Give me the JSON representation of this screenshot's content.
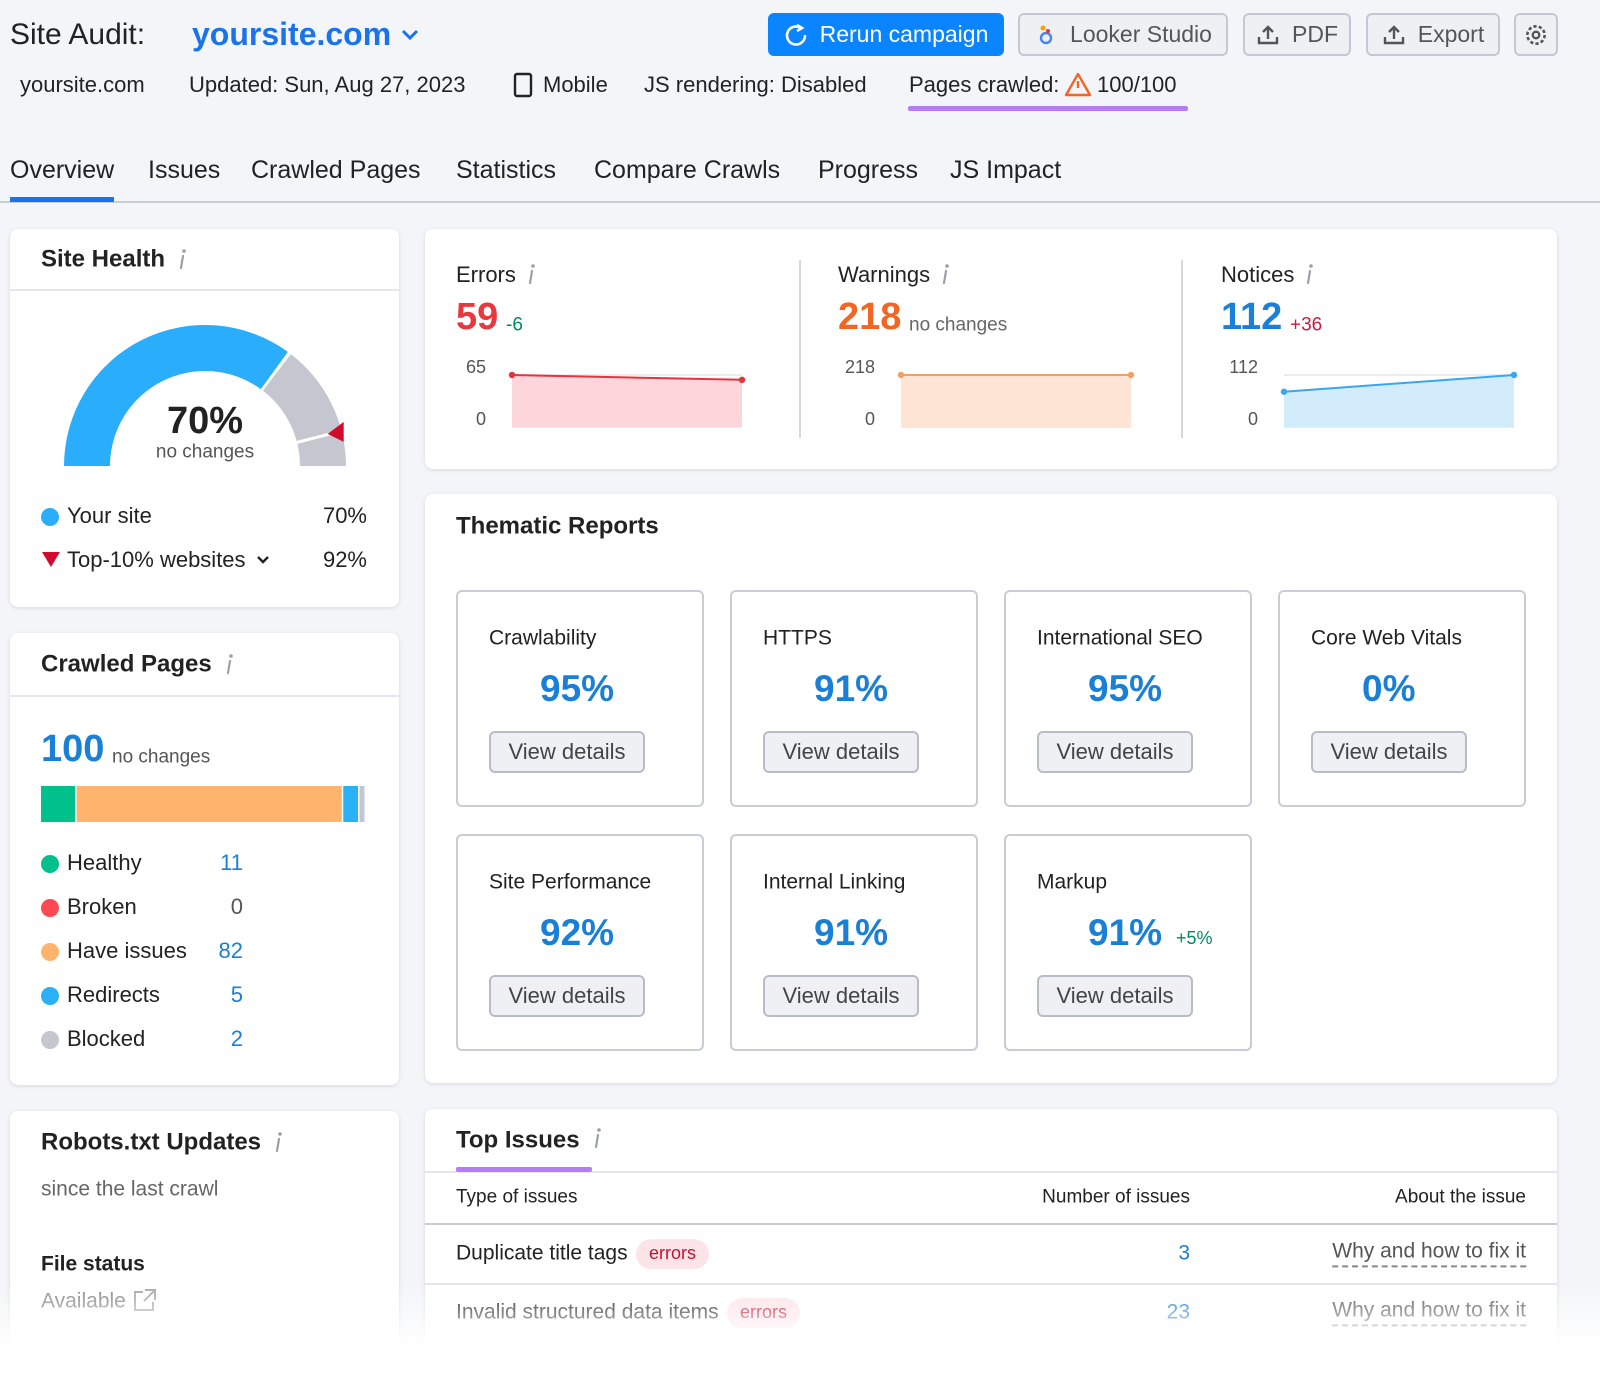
{
  "header": {
    "title": "Site Audit:",
    "domain": "yoursite.com",
    "buttons": [
      "Rerun campaign",
      "Looker Studio",
      "PDF",
      "Export"
    ],
    "site": "yoursite.com",
    "updated": "Updated: Sun, Aug 27, 2023",
    "device": "Mobile",
    "js_rendering": "JS rendering: Disabled",
    "pages_crawled_label": "Pages crawled:",
    "pages_crawled_value": "100/100"
  },
  "tabs": {
    "items": [
      "Overview",
      "Issues",
      "Crawled Pages",
      "Statistics",
      "Compare Crawls",
      "Progress",
      "JS Impact"
    ],
    "active": 0
  },
  "site_health": {
    "title": "Site Health",
    "change": "no changes",
    "legend": [
      {
        "name": "Your site",
        "value": 70,
        "value_label": "70%",
        "color": "#2aaefc"
      },
      {
        "name": "Top-10% websites",
        "value": 92,
        "value_label": "92%",
        "color": "#d10a2e"
      }
    ]
  },
  "summary": [
    {
      "name": "Errors",
      "value": 59,
      "change": "-6",
      "color": "#e8383f",
      "change_color": "#008a5a",
      "line_color": "#e5333f",
      "area_color": "#fdd6dc",
      "trend": [
        65,
        59
      ],
      "yticks": [
        0,
        65
      ]
    },
    {
      "name": "Warnings",
      "value": 218,
      "change": "no changes",
      "color": "#f26522",
      "change_color": "#666666",
      "line_color": "#f0a060",
      "area_color": "#fde4d4",
      "trend": [
        218,
        218
      ],
      "yticks": [
        0,
        218
      ]
    },
    {
      "name": "Notices",
      "value": 112,
      "change": "+36",
      "color": "#1a7fd6",
      "change_color": "#d1193c",
      "line_color": "#3aa5f0",
      "area_color": "#d3ecfb",
      "trend": [
        76,
        112
      ],
      "yticks": [
        0,
        112
      ]
    }
  ],
  "thematic": {
    "title": "Thematic Reports",
    "button": "View details",
    "reports": [
      {
        "name": "Crawlability",
        "value": 95,
        "value_label": "95%"
      },
      {
        "name": "HTTPS",
        "value": 91,
        "value_label": "91%"
      },
      {
        "name": "International SEO",
        "value": 95,
        "value_label": "95%"
      },
      {
        "name": "Core Web Vitals",
        "value": 0,
        "value_label": "0%"
      },
      {
        "name": "Site Performance",
        "value": 92,
        "value_label": "92%"
      },
      {
        "name": "Internal Linking",
        "value": 91,
        "value_label": "91%"
      },
      {
        "name": "Markup",
        "value": 91,
        "value_label": "91%",
        "change": "+5%"
      }
    ]
  },
  "crawled_pages": {
    "title": "Crawled Pages",
    "total": 100,
    "change": "no changes",
    "segments": [
      {
        "name": "Healthy",
        "value": 11,
        "color": "#00c08b"
      },
      {
        "name": "Broken",
        "value": 0,
        "color": "#ff4953"
      },
      {
        "name": "Have issues",
        "value": 82,
        "color": "#ffb46e"
      },
      {
        "name": "Redirects",
        "value": 5,
        "color": "#2bb0f5"
      },
      {
        "name": "Blocked",
        "value": 2,
        "color": "#c4c7cf"
      }
    ]
  },
  "robots": {
    "title": "Robots.txt Updates",
    "subtitle": "since the last crawl",
    "file_status_label": "File status",
    "file_status": "Available"
  },
  "top_issues": {
    "title": "Top Issues",
    "columns": [
      "Type of issues",
      "Number of issues",
      "About the issue"
    ],
    "rows": [
      {
        "issue": "Duplicate title tags",
        "tag": "errors",
        "count": 3,
        "link": "Why and how to fix it"
      },
      {
        "issue": "Invalid structured data items",
        "tag": "errors",
        "count": 23,
        "link": "Why and how to fix it"
      }
    ]
  }
}
